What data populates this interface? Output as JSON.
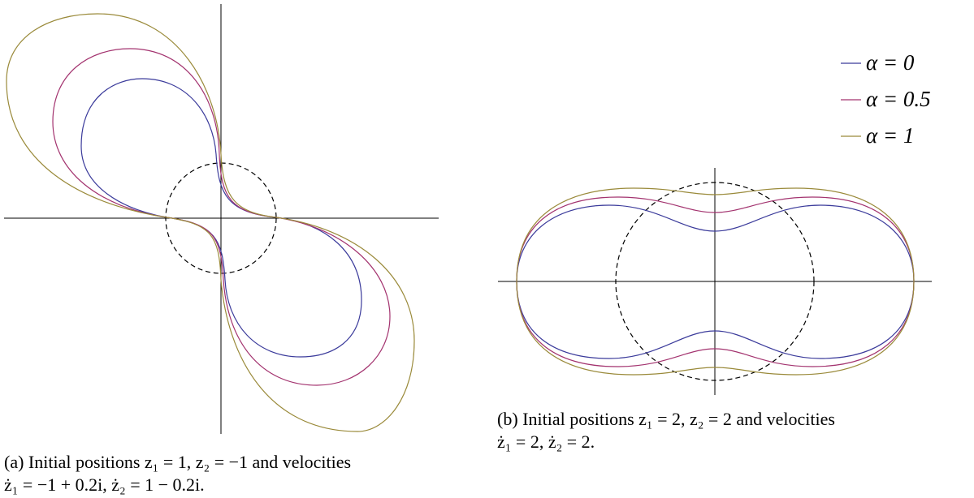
{
  "legend": [
    {
      "label": "α = 0",
      "color": "#3b3b9b"
    },
    {
      "label": "α = 0.5",
      "color": "#a3336f"
    },
    {
      "label": "α = 1",
      "color": "#9a8a3a"
    }
  ],
  "captions": {
    "a": [
      "(a) Initial positions z₁ = 1, z₂ = −1 and velocities",
      "ż₁ = −1 + 0.2i, ż₂ = 1 − 0.2i."
    ],
    "b": [
      "(b) Initial positions z₁ = 2, z₂ = 2 and velocities",
      "ż₁ = 2, ż₂ = 2."
    ]
  }
}
